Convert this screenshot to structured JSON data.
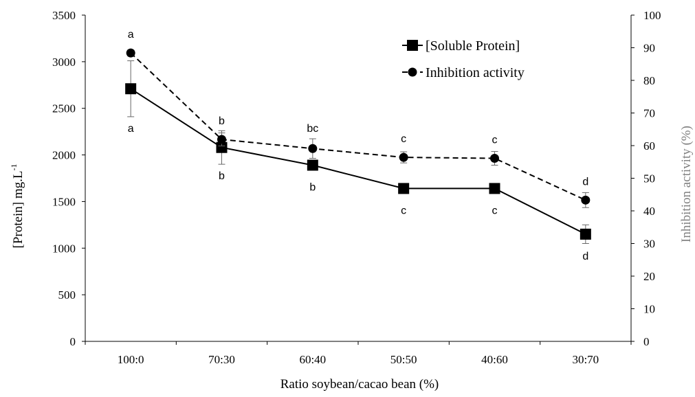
{
  "chart_data": {
    "type": "line",
    "categories": [
      "100:0",
      "70:30",
      "60:40",
      "50:50",
      "40:60",
      "30:70"
    ],
    "xlabel": "Ratio soybean/cacao  bean (%)",
    "ylabel_left": "[Protein] mg.L",
    "ylabel_left_superscript": "-1",
    "ylabel_right": "Inhibition activity (%)",
    "ylim_left": [
      0,
      3500
    ],
    "yticks_left": [
      "0",
      "500",
      "1000",
      "1500",
      "2000",
      "2500",
      "3000",
      "3500"
    ],
    "ylim_right": [
      0,
      100
    ],
    "yticks_right": [
      "0",
      "10",
      "20",
      "30",
      "40",
      "50",
      "60",
      "70",
      "80",
      "90",
      "100"
    ],
    "grid": false,
    "legend_position": "top-right",
    "colors": {
      "axis": "#000000",
      "right_axis_label": "#808080",
      "series": "#000000"
    },
    "series": [
      {
        "name": "[Soluble Protein]",
        "axis": "left",
        "marker": "square",
        "line_style": "solid",
        "values": [
          2710,
          2080,
          1890,
          1640,
          1640,
          1150
        ],
        "errors": [
          300,
          180,
          50,
          40,
          40,
          100
        ],
        "significance_labels": [
          "a",
          "b",
          "b",
          "c",
          "c",
          "d"
        ]
      },
      {
        "name": "Inhibition activity",
        "axis": "right",
        "marker": "circle",
        "line_style": "dashed",
        "values": [
          88.4,
          61.9,
          59.1,
          56.4,
          56.1,
          43.3
        ],
        "errors": [
          0.9,
          2,
          3,
          1.7,
          2.1,
          2.3
        ],
        "significance_labels": [
          "a",
          "b",
          "bc",
          "c",
          "c",
          "d"
        ]
      }
    ]
  }
}
